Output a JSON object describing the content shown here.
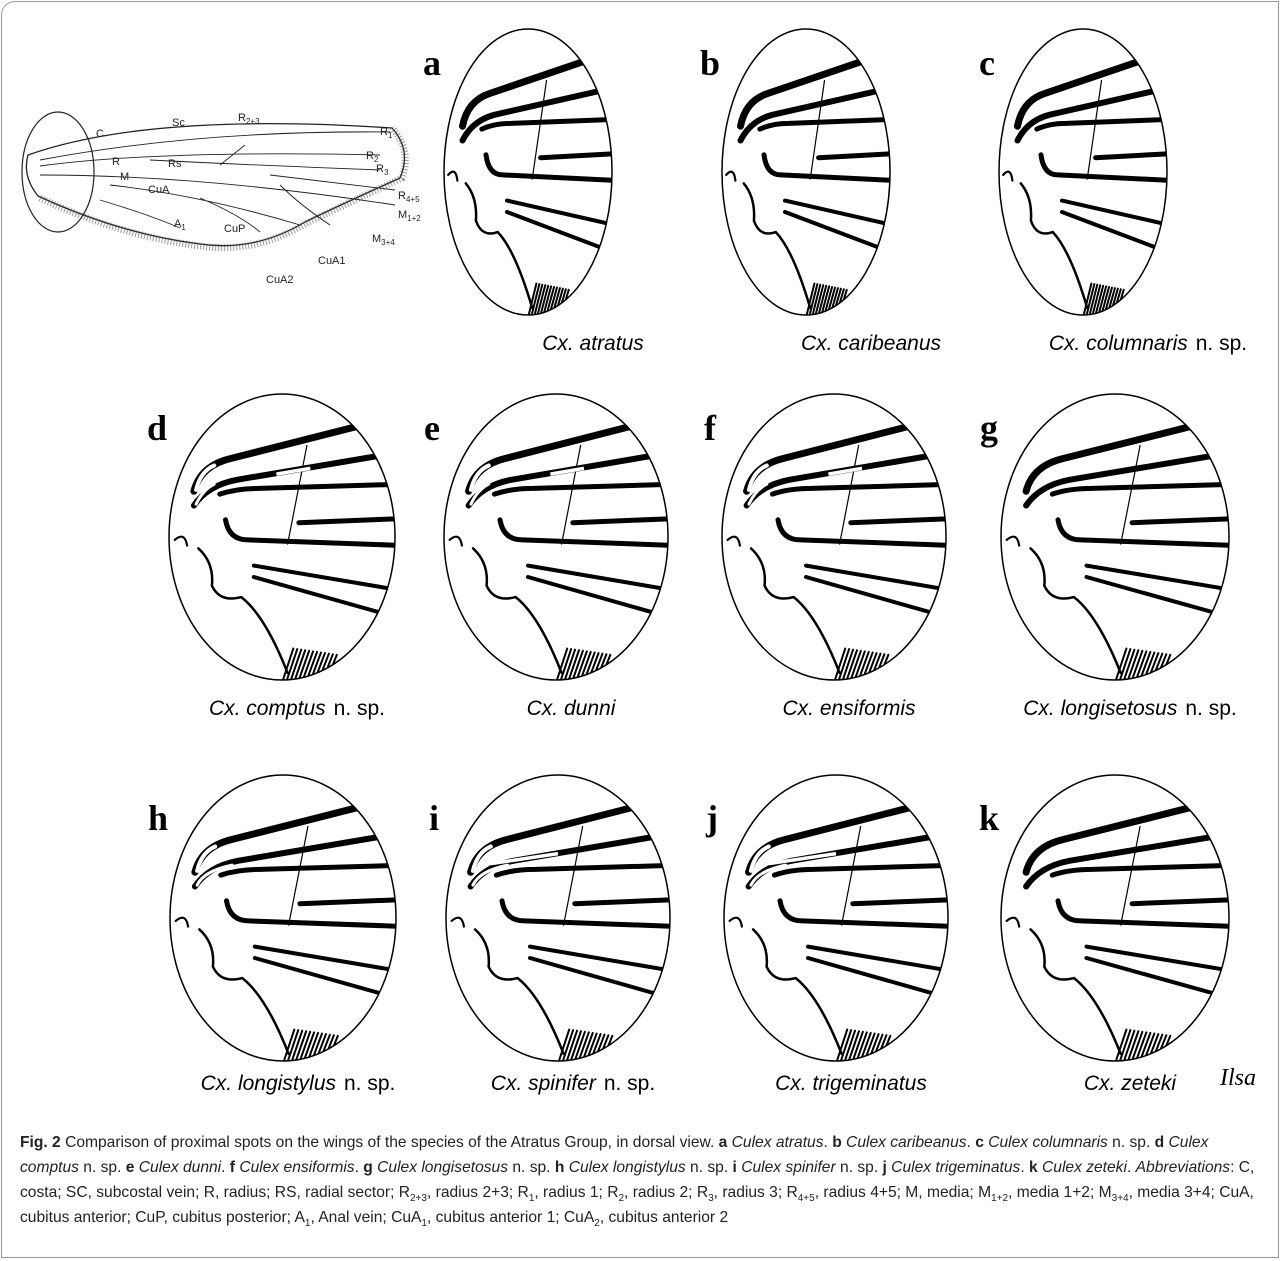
{
  "wing": {
    "labels": [
      {
        "text": "C"
      },
      {
        "text": "Sc"
      },
      {
        "text": "R",
        "sub": "2+3"
      },
      {
        "text": "R",
        "sub": "1"
      },
      {
        "text": "R"
      },
      {
        "text": "Rs"
      },
      {
        "text": "R",
        "sub": "2"
      },
      {
        "text": "R",
        "sub": "3"
      },
      {
        "text": "M"
      },
      {
        "text": "CuA"
      },
      {
        "text": "R",
        "sub": "4+5"
      },
      {
        "text": "M",
        "sub": "1+2"
      },
      {
        "text": "A",
        "sub": "1"
      },
      {
        "text": "CuP"
      },
      {
        "text": "M",
        "sub": "3+4"
      },
      {
        "text": "CuA1"
      },
      {
        "text": "CuA2"
      }
    ]
  },
  "panels": [
    {
      "letter": "a",
      "species": "Cx. atratus"
    },
    {
      "letter": "b",
      "species": "Cx. caribeanus"
    },
    {
      "letter": "c",
      "species": "Cx. columnaris",
      "suffix": "n. sp."
    },
    {
      "letter": "d",
      "species": "Cx. comptus",
      "suffix": "n. sp."
    },
    {
      "letter": "e",
      "species": "Cx. dunni"
    },
    {
      "letter": "f",
      "species": "Cx. ensiformis"
    },
    {
      "letter": "g",
      "species": "Cx. longisetosus",
      "suffix": "n. sp."
    },
    {
      "letter": "h",
      "species": "Cx. longistylus",
      "suffix": "n. sp."
    },
    {
      "letter": "i",
      "species": "Cx. spinifer",
      "suffix": "n. sp."
    },
    {
      "letter": "j",
      "species": "Cx. trigeminatus"
    },
    {
      "letter": "k",
      "species": "Cx. zeteki"
    }
  ],
  "signature": "Ilsa",
  "caption": [
    {
      "text": "Fig. 2",
      "style": "bold"
    },
    {
      "text": "  Comparison of proximal spots on the wings of the species of the Atratus Group, in dorsal view. ",
      "style": "normal"
    },
    {
      "text": "a",
      "style": "bold"
    },
    {
      "text": " Culex atratus",
      "style": "italic"
    },
    {
      "text": ". ",
      "style": "normal"
    },
    {
      "text": "b",
      "style": "bold"
    },
    {
      "text": " Culex caribeanus",
      "style": "italic"
    },
    {
      "text": ". ",
      "style": "normal"
    },
    {
      "text": "c",
      "style": "bold"
    },
    {
      "text": " Culex columnaris",
      "style": "italic"
    },
    {
      "text": " n. sp. ",
      "style": "normal"
    },
    {
      "text": "d",
      "style": "bold"
    },
    {
      "text": " Culex comptus",
      "style": "italic"
    },
    {
      "text": " n. sp. ",
      "style": "normal"
    },
    {
      "text": "e",
      "style": "bold"
    },
    {
      "text": " Culex dunni",
      "style": "italic"
    },
    {
      "text": ". ",
      "style": "normal"
    },
    {
      "text": "f",
      "style": "bold"
    },
    {
      "text": " Culex ensiformis",
      "style": "italic"
    },
    {
      "text": ". ",
      "style": "normal"
    },
    {
      "text": "g",
      "style": "bold"
    },
    {
      "text": " Culex longisetosus",
      "style": "italic"
    },
    {
      "text": " n. sp. ",
      "style": "normal"
    },
    {
      "text": "h",
      "style": "bold"
    },
    {
      "text": " Culex longistylus",
      "style": "italic"
    },
    {
      "text": " n. sp. ",
      "style": "normal"
    },
    {
      "text": "i",
      "style": "bold"
    },
    {
      "text": " Culex spinifer",
      "style": "italic"
    },
    {
      "text": " n. sp. ",
      "style": "normal"
    },
    {
      "text": "j",
      "style": "bold"
    },
    {
      "text": " Culex trigeminatus",
      "style": "italic"
    },
    {
      "text": ". ",
      "style": "normal"
    },
    {
      "text": "k",
      "style": "bold"
    },
    {
      "text": " Culex zeteki",
      "style": "italic"
    },
    {
      "text": ". ",
      "style": "normal"
    },
    {
      "text": "Abbreviations",
      "style": "italic"
    },
    {
      "text": ": C, costa; SC, subcostal vein; R, radius; RS, radial sector; R",
      "style": "normal"
    },
    {
      "text": "2+3",
      "style": "sub"
    },
    {
      "text": ", radius 2+3; R",
      "style": "normal"
    },
    {
      "text": "1",
      "style": "sub"
    },
    {
      "text": ", radius 1; R",
      "style": "normal"
    },
    {
      "text": "2",
      "style": "sub"
    },
    {
      "text": ", radius 2; R",
      "style": "normal"
    },
    {
      "text": "3",
      "style": "sub"
    },
    {
      "text": ", radius 3; R",
      "style": "normal"
    },
    {
      "text": "4+5",
      "style": "sub"
    },
    {
      "text": ", radius 4+5; M, media; M",
      "style": "normal"
    },
    {
      "text": "1+2",
      "style": "sub"
    },
    {
      "text": ", media 1+2; M",
      "style": "normal"
    },
    {
      "text": "3+4",
      "style": "sub"
    },
    {
      "text": ", media 3+4; CuA, cubitus anterior; CuP, cubitus posterior; A",
      "style": "normal"
    },
    {
      "text": "1",
      "style": "sub"
    },
    {
      "text": ", Anal vein; CuA",
      "style": "normal"
    },
    {
      "text": "1",
      "style": "sub"
    },
    {
      "text": ", cubitus anterior 1; CuA",
      "style": "normal"
    },
    {
      "text": "2",
      "style": "sub"
    },
    {
      "text": ", cubitus anterior 2",
      "style": "normal"
    }
  ]
}
